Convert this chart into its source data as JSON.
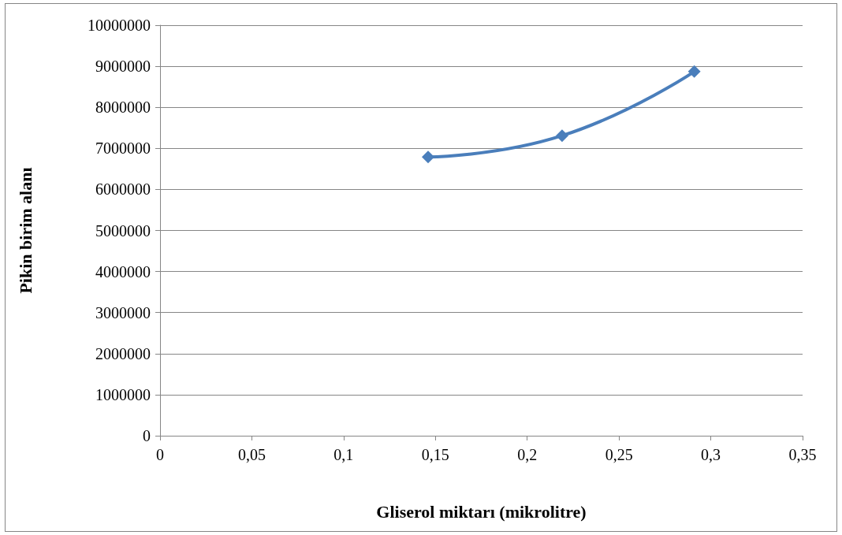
{
  "chart_data": {
    "type": "line",
    "xlabel": "Gliserol miktarı (mikrolitre)",
    "ylabel": "Pikin birim alanı",
    "x": [
      0.146,
      0.219,
      0.291
    ],
    "series": [
      {
        "color": "#4a7ebb",
        "values": [
          6790000,
          7310000,
          8870000
        ]
      }
    ],
    "xlim": [
      0,
      0.35
    ],
    "xticks": [
      0,
      {
        "value": 0.05,
        "label": "0,05"
      },
      {
        "value": 0.1,
        "label": "0,1"
      },
      {
        "value": 0.15,
        "label": "0,15"
      },
      {
        "value": 0.2,
        "label": "0,2"
      },
      {
        "value": 0.25,
        "label": "0,25"
      },
      {
        "value": 0.3,
        "label": "0,3"
      },
      {
        "value": 0.35,
        "label": "0,35"
      }
    ],
    "ylim": [
      0,
      10000000
    ],
    "yticks": [
      0,
      1000000,
      2000000,
      3000000,
      4000000,
      5000000,
      6000000,
      7000000,
      8000000,
      9000000,
      10000000
    ],
    "grid": "y",
    "marker": "diamond",
    "line_style": "solid"
  }
}
